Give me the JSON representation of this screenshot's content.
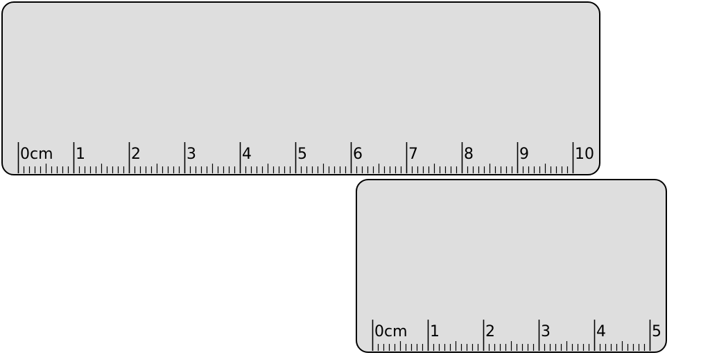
{
  "rulers": [
    {
      "unit": "cm",
      "max_cm": 10,
      "labels": [
        "0cm",
        "1",
        "2",
        "3",
        "4",
        "5",
        "6",
        "7",
        "8",
        "9",
        "10"
      ]
    },
    {
      "unit": "cm",
      "max_cm": 5,
      "labels": [
        "0cm",
        "1",
        "2",
        "3",
        "4",
        "5"
      ]
    }
  ],
  "colors": {
    "ruler_fill": "#dedede",
    "ink": "#000000",
    "background": "#ffffff"
  }
}
